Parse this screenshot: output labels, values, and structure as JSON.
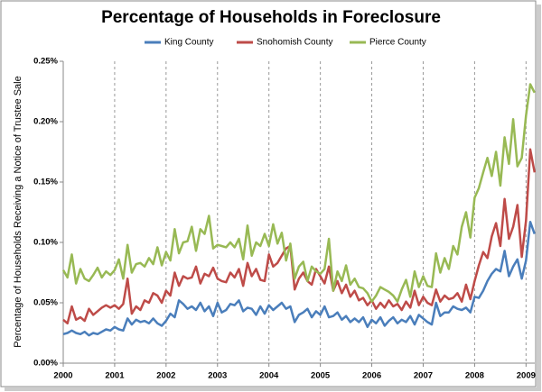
{
  "chart_data": {
    "type": "line",
    "title": "Percentage of Households in Foreclosure",
    "y_label": "Percentage of Households Receiving a Notice of Trustee Sale",
    "x": [
      2000,
      2000.083,
      2000.167,
      2000.25,
      2000.333,
      2000.417,
      2000.5,
      2000.583,
      2000.667,
      2000.75,
      2000.833,
      2000.917,
      2001,
      2001.083,
      2001.167,
      2001.25,
      2001.333,
      2001.417,
      2001.5,
      2001.583,
      2001.667,
      2001.75,
      2001.833,
      2001.917,
      2002,
      2002.083,
      2002.167,
      2002.25,
      2002.333,
      2002.417,
      2002.5,
      2002.583,
      2002.667,
      2002.75,
      2002.833,
      2002.917,
      2003,
      2003.083,
      2003.167,
      2003.25,
      2003.333,
      2003.417,
      2003.5,
      2003.583,
      2003.667,
      2003.75,
      2003.833,
      2003.917,
      2004,
      2004.083,
      2004.167,
      2004.25,
      2004.333,
      2004.417,
      2004.5,
      2004.583,
      2004.667,
      2004.75,
      2004.833,
      2004.917,
      2005,
      2005.083,
      2005.167,
      2005.25,
      2005.333,
      2005.417,
      2005.5,
      2005.583,
      2005.667,
      2005.75,
      2005.833,
      2005.917,
      2006,
      2006.083,
      2006.167,
      2006.25,
      2006.333,
      2006.417,
      2006.5,
      2006.583,
      2006.667,
      2006.75,
      2006.833,
      2006.917,
      2007,
      2007.083,
      2007.167,
      2007.25,
      2007.333,
      2007.417,
      2007.5,
      2007.583,
      2007.667,
      2007.75,
      2007.833,
      2007.917,
      2008,
      2008.083,
      2008.167,
      2008.25,
      2008.333,
      2008.417,
      2008.5,
      2008.583,
      2008.667,
      2008.75,
      2008.833,
      2008.917,
      2009,
      2009.083,
      2009.167
    ],
    "series": [
      {
        "name": "King County",
        "color": "#4a7ebb",
        "values": [
          0.024,
          0.025,
          0.027,
          0.025,
          0.024,
          0.026,
          0.023,
          0.025,
          0.024,
          0.026,
          0.028,
          0.027,
          0.03,
          0.028,
          0.027,
          0.037,
          0.032,
          0.036,
          0.034,
          0.035,
          0.033,
          0.037,
          0.033,
          0.031,
          0.035,
          0.041,
          0.038,
          0.052,
          0.049,
          0.045,
          0.047,
          0.044,
          0.05,
          0.043,
          0.047,
          0.039,
          0.05,
          0.042,
          0.044,
          0.049,
          0.048,
          0.052,
          0.043,
          0.046,
          0.045,
          0.04,
          0.047,
          0.041,
          0.048,
          0.044,
          0.047,
          0.05,
          0.045,
          0.047,
          0.034,
          0.04,
          0.042,
          0.045,
          0.038,
          0.043,
          0.04,
          0.047,
          0.038,
          0.039,
          0.042,
          0.036,
          0.039,
          0.034,
          0.037,
          0.034,
          0.038,
          0.03,
          0.036,
          0.033,
          0.038,
          0.031,
          0.035,
          0.038,
          0.033,
          0.036,
          0.034,
          0.039,
          0.032,
          0.04,
          0.037,
          0.034,
          0.032,
          0.05,
          0.039,
          0.042,
          0.042,
          0.047,
          0.045,
          0.044,
          0.046,
          0.042,
          0.055,
          0.054,
          0.06,
          0.068,
          0.074,
          0.078,
          0.076,
          0.093,
          0.072,
          0.08,
          0.086,
          0.07,
          0.085,
          0.117,
          0.107
        ]
      },
      {
        "name": "Snohomish County",
        "color": "#be4b48",
        "values": [
          0.036,
          0.033,
          0.047,
          0.036,
          0.038,
          0.035,
          0.045,
          0.04,
          0.043,
          0.046,
          0.048,
          0.046,
          0.048,
          0.045,
          0.049,
          0.07,
          0.041,
          0.047,
          0.044,
          0.052,
          0.05,
          0.058,
          0.056,
          0.05,
          0.06,
          0.056,
          0.075,
          0.064,
          0.072,
          0.07,
          0.071,
          0.08,
          0.066,
          0.074,
          0.072,
          0.079,
          0.07,
          0.068,
          0.067,
          0.075,
          0.071,
          0.078,
          0.064,
          0.083,
          0.072,
          0.078,
          0.069,
          0.068,
          0.09,
          0.08,
          0.083,
          0.089,
          0.095,
          0.097,
          0.061,
          0.07,
          0.075,
          0.068,
          0.065,
          0.078,
          0.072,
          0.066,
          0.08,
          0.06,
          0.068,
          0.058,
          0.065,
          0.055,
          0.06,
          0.052,
          0.054,
          0.048,
          0.052,
          0.045,
          0.05,
          0.046,
          0.052,
          0.047,
          0.049,
          0.044,
          0.051,
          0.046,
          0.06,
          0.048,
          0.055,
          0.05,
          0.048,
          0.061,
          0.051,
          0.056,
          0.053,
          0.054,
          0.058,
          0.051,
          0.065,
          0.053,
          0.068,
          0.081,
          0.092,
          0.087,
          0.105,
          0.116,
          0.097,
          0.136,
          0.103,
          0.113,
          0.131,
          0.088,
          0.118,
          0.177,
          0.158
        ]
      },
      {
        "name": "Pierce County",
        "color": "#98b954",
        "values": [
          0.077,
          0.071,
          0.09,
          0.066,
          0.078,
          0.07,
          0.068,
          0.073,
          0.079,
          0.071,
          0.076,
          0.073,
          0.077,
          0.086,
          0.07,
          0.098,
          0.075,
          0.082,
          0.083,
          0.08,
          0.087,
          0.082,
          0.096,
          0.081,
          0.092,
          0.085,
          0.111,
          0.091,
          0.1,
          0.101,
          0.113,
          0.093,
          0.111,
          0.107,
          0.122,
          0.095,
          0.098,
          0.097,
          0.096,
          0.1,
          0.096,
          0.103,
          0.086,
          0.114,
          0.089,
          0.1,
          0.097,
          0.107,
          0.097,
          0.115,
          0.099,
          0.108,
          0.085,
          0.099,
          0.07,
          0.08,
          0.084,
          0.068,
          0.08,
          0.076,
          0.074,
          0.078,
          0.103,
          0.06,
          0.076,
          0.068,
          0.081,
          0.065,
          0.07,
          0.063,
          0.062,
          0.058,
          0.051,
          0.056,
          0.063,
          0.061,
          0.059,
          0.056,
          0.051,
          0.061,
          0.069,
          0.055,
          0.076,
          0.063,
          0.072,
          0.064,
          0.063,
          0.091,
          0.075,
          0.087,
          0.078,
          0.097,
          0.09,
          0.113,
          0.125,
          0.104,
          0.137,
          0.145,
          0.158,
          0.17,
          0.155,
          0.175,
          0.147,
          0.187,
          0.165,
          0.202,
          0.163,
          0.17,
          0.205,
          0.231,
          0.224
        ]
      }
    ],
    "xlim": [
      2000,
      2009.17
    ],
    "xticks": [
      2000,
      2001,
      2002,
      2003,
      2004,
      2005,
      2006,
      2007,
      2008,
      2009
    ],
    "ylim": [
      0,
      0.25
    ],
    "yticks": [
      {
        "value": 0,
        "label": "0.00%"
      },
      {
        "value": 0.05,
        "label": "0.05%"
      },
      {
        "value": 0.1,
        "label": "0.10%"
      },
      {
        "value": 0.15,
        "label": "0.15%"
      },
      {
        "value": 0.2,
        "label": "0.20%"
      },
      {
        "value": 0.25,
        "label": "0.25%"
      }
    ],
    "grid": true,
    "legend": "top"
  }
}
